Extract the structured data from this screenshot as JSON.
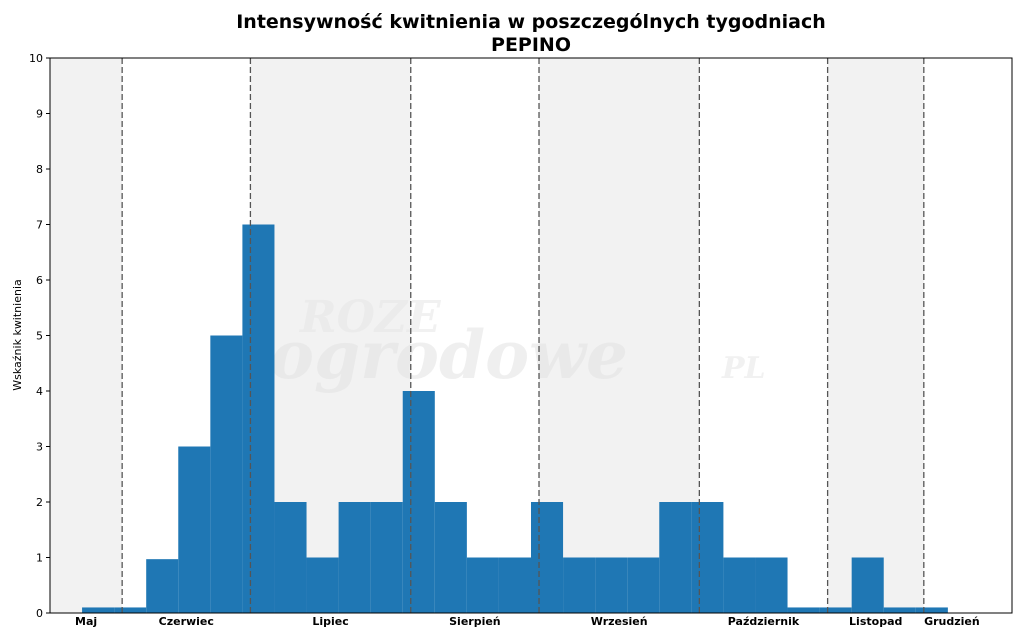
{
  "chart_data": {
    "type": "bar",
    "title": "Intensywność kwitnienia w poszczególnych tygodniach",
    "subtitle": "PEPINO",
    "xlabel": "",
    "ylabel": "Wskaźnik kwitnienia",
    "ylim": [
      0,
      10
    ],
    "yticks": [
      "0",
      "1",
      "2",
      "3",
      "4",
      "5",
      "6",
      "7",
      "8",
      "9",
      "10"
    ],
    "grid": false,
    "legend": "none",
    "bar_color": "#1f77b4",
    "shade_color": "#f2f2f2",
    "weeks_total": 30,
    "values": [
      0,
      0.1,
      0.1,
      0.97,
      3,
      5,
      7,
      2,
      1,
      2,
      2,
      4,
      2,
      1,
      1,
      2,
      1,
      1,
      1,
      2,
      2,
      1,
      1,
      0.1,
      0.1,
      1,
      0.1,
      0.1,
      0,
      0
    ],
    "months": [
      {
        "name": "Maj",
        "start_week": 0,
        "end_week": 2.25,
        "shaded": true
      },
      {
        "name": "Czerwiec",
        "start_week": 2.25,
        "end_week": 6.25,
        "shaded": false
      },
      {
        "name": "Lipiec",
        "start_week": 6.25,
        "end_week": 11.25,
        "shaded": true
      },
      {
        "name": "Sierpień",
        "start_week": 11.25,
        "end_week": 15.25,
        "shaded": false
      },
      {
        "name": "Wrzesień",
        "start_week": 15.25,
        "end_week": 20.25,
        "shaded": true
      },
      {
        "name": "Październik",
        "start_week": 20.25,
        "end_week": 24.25,
        "shaded": false
      },
      {
        "name": "Listopad",
        "start_week": 24.25,
        "end_week": 27.25,
        "shaded": true
      },
      {
        "name": "Grudzień",
        "start_week": 27.25,
        "end_week": 29,
        "shaded": false
      }
    ]
  },
  "watermark": {
    "line1": "ROZE",
    "line2": "ogrodowe",
    "suffix": "PL"
  }
}
